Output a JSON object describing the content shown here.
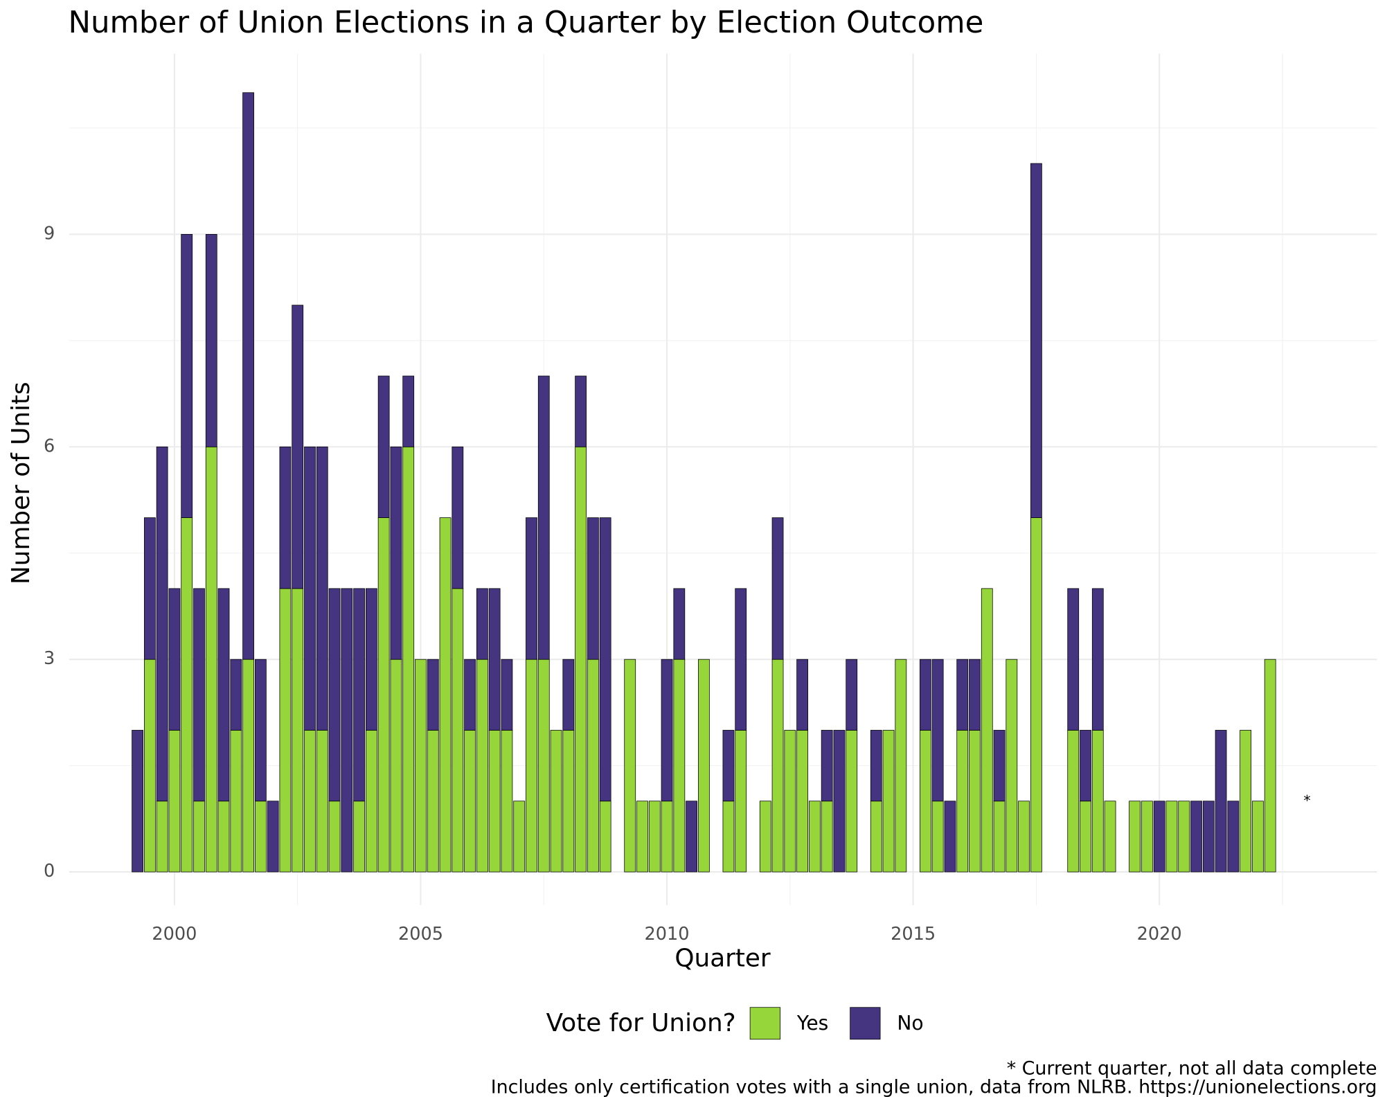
{
  "chart_data": {
    "type": "stacked_bar",
    "title": "Number of Union Elections in a Quarter by Election Outcome",
    "x_label": "Quarter",
    "y_label": "Number of Units",
    "legend_title": "Vote for Union?",
    "caption": [
      "* Current quarter, not all data complete",
      "Includes only certification votes with a single union, data from NLRB. https://unionelections.org"
    ],
    "annotations": [
      {
        "text": "*",
        "x": 2023,
        "y": 1
      }
    ],
    "x": [
      1999.25,
      1999.5,
      1999.75,
      2000,
      2000.25,
      2000.5,
      2000.75,
      2001,
      2001.25,
      2001.5,
      2001.75,
      2002,
      2002.25,
      2002.5,
      2002.75,
      2003,
      2003.25,
      2003.5,
      2003.75,
      2004,
      2004.25,
      2004.5,
      2004.75,
      2005,
      2005.25,
      2005.5,
      2005.75,
      2006,
      2006.25,
      2006.5,
      2006.75,
      2007,
      2007.25,
      2007.5,
      2007.75,
      2008,
      2008.25,
      2008.5,
      2008.75,
      2009.25,
      2009.5,
      2009.75,
      2010,
      2010.25,
      2010.5,
      2010.75,
      2011.25,
      2011.5,
      2012,
      2012.25,
      2012.5,
      2012.75,
      2013,
      2013.25,
      2013.5,
      2013.75,
      2014.25,
      2014.5,
      2014.75,
      2015.25,
      2015.5,
      2015.75,
      2016,
      2016.25,
      2016.5,
      2016.75,
      2017,
      2017.25,
      2017.5,
      2018.25,
      2018.5,
      2018.75,
      2019,
      2019.5,
      2019.75,
      2020,
      2020.25,
      2020.5,
      2020.75,
      2021,
      2021.25,
      2021.5,
      2021.75,
      2022,
      2022.25
    ],
    "series": [
      {
        "name": "Yes",
        "color": "#97d63b",
        "values": [
          0,
          3,
          1,
          2,
          5,
          1,
          6,
          1,
          2,
          3,
          1,
          0,
          4,
          4,
          2,
          2,
          1,
          0,
          1,
          2,
          5,
          3,
          6,
          3,
          2,
          5,
          4,
          2,
          3,
          2,
          2,
          1,
          3,
          3,
          2,
          2,
          6,
          3,
          1,
          3,
          1,
          1,
          1,
          3,
          0,
          3,
          1,
          2,
          1,
          3,
          2,
          2,
          1,
          1,
          0,
          2,
          1,
          2,
          3,
          2,
          1,
          0,
          2,
          2,
          4,
          1,
          3,
          1,
          5,
          2,
          1,
          2,
          1,
          1,
          1,
          0,
          1,
          1,
          0,
          0,
          0,
          0,
          2,
          1,
          3
        ]
      },
      {
        "name": "No",
        "color": "#453580",
        "values": [
          2,
          2,
          5,
          2,
          4,
          3,
          3,
          3,
          1,
          8,
          2,
          1,
          2,
          4,
          4,
          4,
          3,
          4,
          3,
          2,
          2,
          3,
          1,
          0,
          1,
          0,
          2,
          1,
          1,
          2,
          1,
          0,
          2,
          4,
          0,
          1,
          1,
          2,
          4,
          0,
          0,
          0,
          2,
          1,
          1,
          0,
          1,
          2,
          0,
          2,
          0,
          1,
          0,
          1,
          2,
          1,
          1,
          0,
          0,
          1,
          2,
          1,
          1,
          1,
          0,
          1,
          0,
          0,
          5,
          2,
          1,
          2,
          0,
          0,
          0,
          1,
          0,
          0,
          1,
          1,
          2,
          1,
          0,
          0,
          0
        ]
      }
    ],
    "xlim": [
      1997.86,
      2024.42
    ],
    "ylim": [
      -0.47,
      11.55
    ],
    "xticks": [
      2000,
      2005,
      2010,
      2015,
      2020
    ],
    "yticks": [
      0,
      3,
      6,
      9
    ],
    "x_minor_grid": [
      2002.5,
      2007.5,
      2012.5,
      2017.5,
      2022.5
    ],
    "y_minor_grid": [
      1.5,
      4.5,
      7.5,
      10.5
    ],
    "bar_width": 0.225,
    "grid": true,
    "legend": "bottom"
  }
}
